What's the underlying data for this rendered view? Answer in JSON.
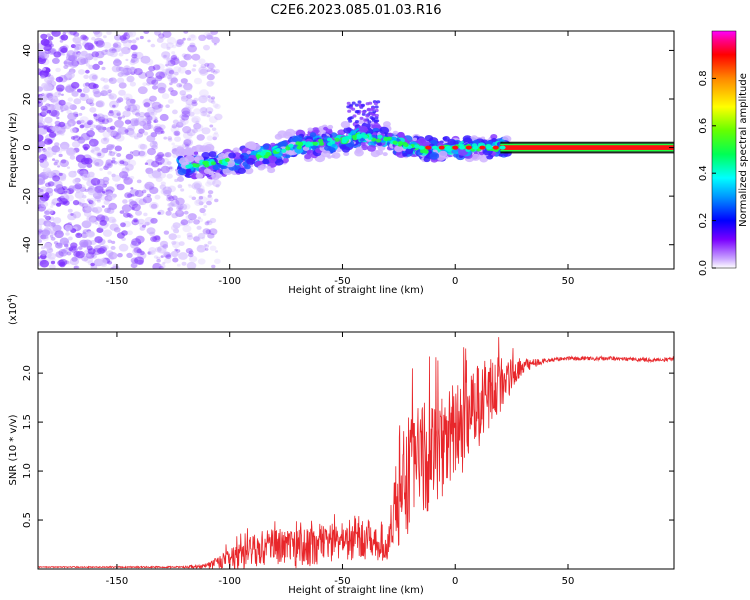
{
  "title": "C2E6.2023.085.01.03.R16",
  "chart_data": [
    {
      "type": "heatmap",
      "xlabel": "Height of straight line (km)",
      "ylabel": "Frequency (Hz)",
      "xlim": [
        -185,
        97
      ],
      "ylim": [
        -50,
        48
      ],
      "xticks": [
        -150,
        -100,
        -50,
        0,
        50
      ],
      "xtick_labels": [
        "-150",
        "-100",
        "-50",
        "0",
        "50"
      ],
      "yticks": [
        -40,
        -20,
        0,
        20,
        40
      ],
      "ytick_labels": [
        "-40",
        "-20",
        "0",
        "20",
        "40"
      ],
      "colorbar": {
        "label": "Normalized spectral amplitude",
        "range": [
          0,
          1
        ],
        "ticks": [
          0.0,
          0.2,
          0.4,
          0.6,
          0.8
        ],
        "tick_labels": [
          "0.0",
          "0.2",
          "0.4",
          "0.6",
          "0.8"
        ]
      },
      "ridge": {
        "description_points_km_hz": [
          [
            -120,
            -7
          ],
          [
            -100,
            -6
          ],
          [
            -90,
            -4
          ],
          [
            -80,
            -2
          ],
          [
            -70,
            1
          ],
          [
            -60,
            2
          ],
          [
            -50,
            3
          ],
          [
            -40,
            5
          ],
          [
            -30,
            3
          ],
          [
            -20,
            0
          ],
          [
            -10,
            -1
          ],
          [
            0,
            0
          ],
          [
            20,
            0
          ],
          [
            95,
            0
          ]
        ],
        "band_hz": [
          -2,
          2
        ],
        "band_start_km": 20
      }
    },
    {
      "type": "line",
      "xlabel": "Height of straight line (km)",
      "ylabel": "SNR (10 * v/v)",
      "yscale_label": "(x10",
      "yscale_exponent": "4",
      "yscale_suffix": ")",
      "xlim": [
        -185,
        97
      ],
      "ylim": [
        0,
        2.42
      ],
      "xticks": [
        -150,
        -100,
        -50,
        0,
        50
      ],
      "xtick_labels": [
        "-150",
        "-100",
        "-50",
        "0",
        "50"
      ],
      "yticks": [
        0.5,
        1.0,
        1.5,
        2.0
      ],
      "ytick_labels": [
        "0.5",
        "1.0",
        "1.5",
        "2.0"
      ],
      "line_color": "#e8262a",
      "trend": {
        "x": [
          -185,
          -150,
          -120,
          -110,
          -100,
          -90,
          -80,
          -70,
          -60,
          -50,
          -40,
          -30,
          -25,
          -20,
          -10,
          0,
          10,
          20,
          30,
          40,
          50,
          60,
          70,
          80,
          90,
          97
        ],
        "y": [
          0.02,
          0.02,
          0.02,
          0.03,
          0.08,
          0.18,
          0.25,
          0.2,
          0.25,
          0.28,
          0.27,
          0.22,
          0.8,
          1.0,
          1.2,
          1.4,
          1.65,
          1.9,
          2.08,
          2.13,
          2.15,
          2.15,
          2.15,
          2.14,
          2.13,
          2.15
        ]
      },
      "noise": {
        "x": [
          -185,
          -120,
          -110,
          -100,
          -80,
          -60,
          -40,
          -30,
          -25,
          -10,
          10,
          20,
          30,
          40,
          97
        ],
        "amp": [
          0.005,
          0.008,
          0.03,
          0.12,
          0.2,
          0.2,
          0.18,
          0.15,
          0.6,
          0.6,
          0.45,
          0.3,
          0.08,
          0.02,
          0.02
        ]
      }
    }
  ]
}
